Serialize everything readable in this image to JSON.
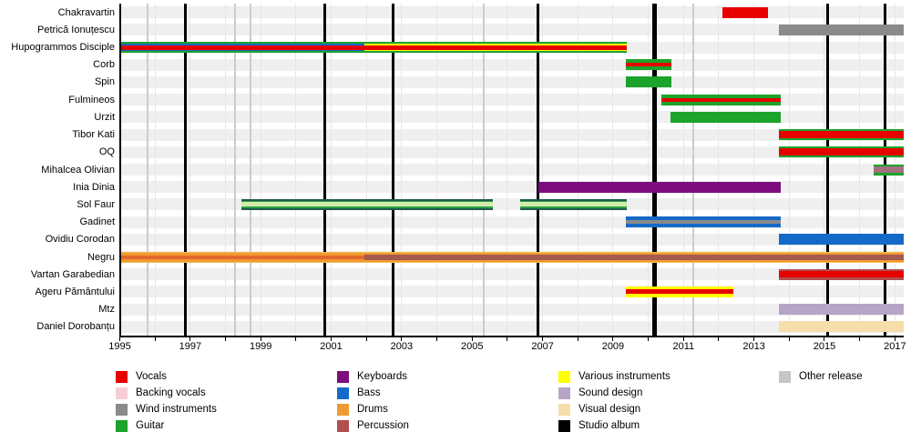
{
  "chart_data": {
    "type": "timeline",
    "title": "",
    "x_axis": {
      "min": 1995,
      "max": 2017.25,
      "tick_years": [
        1995,
        1996,
        1997,
        1998,
        1999,
        2000,
        2001,
        2002,
        2003,
        2004,
        2005,
        2006,
        2007,
        2008,
        2009,
        2010,
        2011,
        2012,
        2013,
        2014,
        2015,
        2016,
        2017
      ],
      "labels": [
        "1995",
        "1997",
        "1999",
        "2001",
        "2003",
        "2005",
        "2007",
        "2009",
        "2011",
        "2013",
        "2015",
        "2017"
      ],
      "label_years": [
        1995,
        1997,
        1999,
        2001,
        2003,
        2005,
        2007,
        2009,
        2011,
        2013,
        2015,
        2017
      ]
    },
    "rows": [
      {
        "name": "Chakravartin",
        "segments": [
          {
            "start": 2012.1,
            "end": 2013.4,
            "stripes": [
              [
                "#e60000",
                1
              ]
            ]
          }
        ]
      },
      {
        "name": "Petrică Ionuțescu",
        "segments": [
          {
            "start": 2013.72,
            "end": 2017.25,
            "stripes": [
              [
                "#8a8a8a",
                1
              ]
            ]
          }
        ]
      },
      {
        "name": "Hupogrammos Disciple",
        "segments": [
          {
            "start": 1995.0,
            "end": 2001.94,
            "stripes": [
              [
                "#1ca32b",
                1
              ],
              [
                "#1569c8",
                0.68
              ],
              [
                "#e60000",
                0.42
              ]
            ]
          },
          {
            "start": 2001.94,
            "end": 2009.4,
            "stripes": [
              [
                "#1ca32b",
                1
              ],
              [
                "#ffff00",
                0.68
              ],
              [
                "#e60000",
                0.42
              ]
            ]
          }
        ]
      },
      {
        "name": "Corb",
        "segments": [
          {
            "start": 2009.36,
            "end": 2010.66,
            "stripes": [
              [
                "#1ca32b",
                1
              ],
              [
                "#e60000",
                0.3
              ]
            ]
          }
        ]
      },
      {
        "name": "Spin",
        "segments": [
          {
            "start": 2009.36,
            "end": 2010.66,
            "stripes": [
              [
                "#1ca32b",
                1
              ]
            ]
          }
        ]
      },
      {
        "name": "Fulmineos",
        "segments": [
          {
            "start": 2010.37,
            "end": 2013.76,
            "stripes": [
              [
                "#1ca32b",
                1
              ],
              [
                "#e60000",
                0.3
              ]
            ]
          }
        ]
      },
      {
        "name": "Urzit",
        "segments": [
          {
            "start": 2010.63,
            "end": 2013.76,
            "stripes": [
              [
                "#1ca32b",
                1
              ]
            ]
          }
        ]
      },
      {
        "name": "Tibor Kati",
        "segments": [
          {
            "start": 2013.72,
            "end": 2017.25,
            "stripes": [
              [
                "#1ca32b",
                1
              ],
              [
                "#e60000",
                0.7
              ]
            ]
          }
        ]
      },
      {
        "name": "OQ",
        "segments": [
          {
            "start": 2013.72,
            "end": 2017.25,
            "stripes": [
              [
                "#1ca32b",
                1
              ],
              [
                "#e60000",
                0.7
              ]
            ]
          }
        ]
      },
      {
        "name": "Mihalcea Olivian",
        "segments": [
          {
            "start": 2016.4,
            "end": 2017.25,
            "stripes": [
              [
                "#1ca32b",
                1
              ],
              [
                "#a3707f",
                0.55
              ]
            ]
          }
        ]
      },
      {
        "name": "Inia Dinia",
        "segments": [
          {
            "start": 2006.88,
            "end": 2013.76,
            "stripes": [
              [
                "#7d0d7d",
                1
              ]
            ]
          }
        ]
      },
      {
        "name": "Sol Faur",
        "segments": [
          {
            "start": 1998.45,
            "end": 2005.59,
            "stripes": [
              [
                "#1e5a4b",
                1
              ],
              [
                "#2fa046",
                0.7
              ],
              [
                "#d2ecaa",
                0.4
              ]
            ]
          },
          {
            "start": 2006.36,
            "end": 2009.39,
            "stripes": [
              [
                "#1e5a4b",
                1
              ],
              [
                "#2fa046",
                0.7
              ],
              [
                "#d2ecaa",
                0.4
              ]
            ]
          }
        ]
      },
      {
        "name": "Gadinet",
        "segments": [
          {
            "start": 2009.36,
            "end": 2013.76,
            "stripes": [
              [
                "#1569c8",
                1
              ],
              [
                "#8a8a8a",
                0.36
              ]
            ]
          }
        ]
      },
      {
        "name": "Ovidiu Corodan",
        "segments": [
          {
            "start": 2013.72,
            "end": 2017.25,
            "stripes": [
              [
                "#1569c8",
                1
              ]
            ]
          }
        ]
      },
      {
        "name": "Negru",
        "segments": [
          {
            "start": 1995.0,
            "end": 2001.94,
            "stripes": [
              [
                "#f4c052",
                1
              ],
              [
                "#f09a32",
                0.8
              ],
              [
                "#e0682a",
                0.3
              ]
            ]
          },
          {
            "start": 2001.94,
            "end": 2017.25,
            "stripes": [
              [
                "#f4c052",
                1
              ],
              [
                "#f09a32",
                0.84
              ],
              [
                "#a45a50",
                0.52
              ]
            ]
          }
        ]
      },
      {
        "name": "Vartan Garabedian",
        "segments": [
          {
            "start": 2013.72,
            "end": 2017.25,
            "stripes": [
              [
                "#b04f4f",
                1
              ],
              [
                "#e60000",
                0.62
              ]
            ]
          }
        ]
      },
      {
        "name": "Ageru Pământului",
        "segments": [
          {
            "start": 2009.36,
            "end": 2012.41,
            "stripes": [
              [
                "#ffff00",
                1
              ],
              [
                "#e60000",
                0.4
              ]
            ]
          }
        ]
      },
      {
        "name": "Mtz",
        "segments": [
          {
            "start": 2013.72,
            "end": 2017.25,
            "stripes": [
              [
                "#b6a5c6",
                1
              ]
            ]
          }
        ]
      },
      {
        "name": "Daniel Dorobanțu",
        "segments": [
          {
            "start": 2013.72,
            "end": 2017.25,
            "stripes": [
              [
                "#f6dda9",
                1
              ]
            ]
          }
        ]
      }
    ],
    "album_lines": [
      {
        "year": 1996.87,
        "wide": false
      },
      {
        "year": 2000.83,
        "wide": false
      },
      {
        "year": 2002.77,
        "wide": false
      },
      {
        "year": 2006.86,
        "wide": false
      },
      {
        "year": 2010.18,
        "wide": true
      },
      {
        "year": 2015.08,
        "wide": false
      },
      {
        "year": 2016.71,
        "wide": false
      }
    ],
    "release_lines": [
      1995.79,
      1998.27,
      1998.71,
      2005.33,
      2011.28
    ],
    "legend": [
      {
        "items": [
          {
            "label": "Vocals",
            "color": "#e60000"
          },
          {
            "label": "Backing vocals",
            "color": "#f6ced6"
          },
          {
            "label": "Wind instruments",
            "color": "#8a8a8a"
          },
          {
            "label": "Guitar",
            "color": "#1ca32b"
          }
        ]
      },
      {
        "items": [
          {
            "label": "Keyboards",
            "color": "#7d0d7d"
          },
          {
            "label": "Bass",
            "color": "#1569c8"
          },
          {
            "label": "Drums",
            "color": "#f09a32"
          },
          {
            "label": "Percussion",
            "color": "#b04f4f"
          }
        ]
      },
      {
        "items": [
          {
            "label": "Various instruments",
            "color": "#ffff00"
          },
          {
            "label": "Sound design",
            "color": "#b6a5c6"
          },
          {
            "label": "Visual design",
            "color": "#f6dda9"
          },
          {
            "label": "Studio album",
            "color": "#000000"
          }
        ]
      },
      {
        "items": [
          {
            "label": "Other release",
            "color": "#c6c6c6"
          }
        ]
      }
    ],
    "style_colors": {
      "row_band": "#efefef",
      "year_gridline": "#e7e7e7",
      "release_line": "#cccccc",
      "album_line": "#000000",
      "axis": "#000000"
    }
  }
}
